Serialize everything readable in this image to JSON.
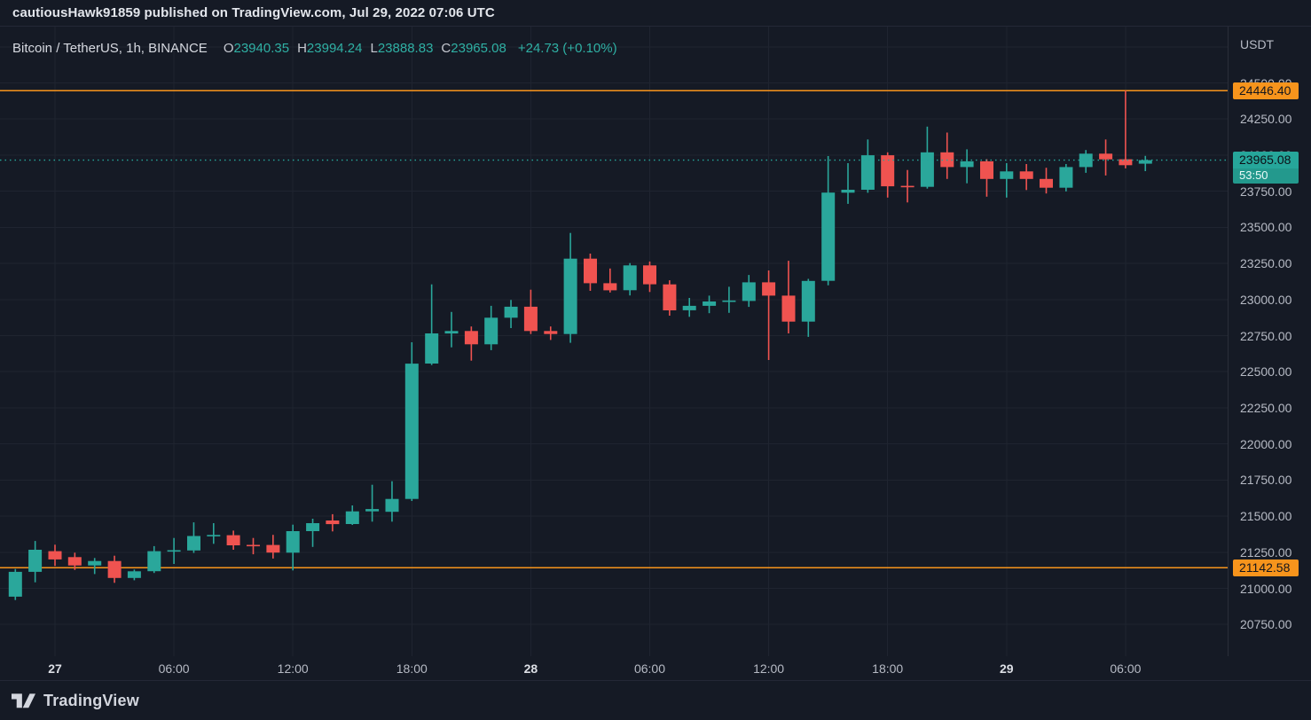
{
  "header": {
    "published_line": "cautiousHawk91859 published on TradingView.com, Jul 29, 2022 07:06 UTC"
  },
  "legend": {
    "symbol": "Bitcoin / TetherUS, 1h, BINANCE",
    "ohlc": [
      {
        "label": "O",
        "value": "23940.35"
      },
      {
        "label": "H",
        "value": "23994.24"
      },
      {
        "label": "L",
        "value": "23888.83"
      },
      {
        "label": "C",
        "value": "23965.08"
      }
    ],
    "change": "+24.73 (+0.10%)"
  },
  "price_axis": {
    "currency_label": "USDT",
    "ticks": [
      24500,
      24250,
      24000,
      23750,
      23500,
      23250,
      23000,
      22750,
      22500,
      22250,
      22000,
      21750,
      21500,
      21250,
      21000,
      20750
    ]
  },
  "price_lines": [
    {
      "value": "24446.40",
      "price": 24446.4
    },
    {
      "value": "21142.58",
      "price": 21142.58
    }
  ],
  "last_price_label": {
    "value": "23965.08",
    "countdown": "53:50",
    "price": 23965.08
  },
  "time_axis": {
    "labels": [
      {
        "index": 2,
        "text": "27",
        "bold": true
      },
      {
        "index": 8,
        "text": "06:00",
        "bold": false
      },
      {
        "index": 14,
        "text": "12:00",
        "bold": false
      },
      {
        "index": 20,
        "text": "18:00",
        "bold": false
      },
      {
        "index": 26,
        "text": "28",
        "bold": true
      },
      {
        "index": 32,
        "text": "06:00",
        "bold": false
      },
      {
        "index": 38,
        "text": "12:00",
        "bold": false
      },
      {
        "index": 44,
        "text": "18:00",
        "bold": false
      },
      {
        "index": 50,
        "text": "29",
        "bold": true
      },
      {
        "index": 56,
        "text": "06:00",
        "bold": false
      }
    ]
  },
  "footer": {
    "brand": "TradingView"
  },
  "colors": {
    "background": "#151a25",
    "grid": "#1f2430",
    "up": "#2aa79b",
    "down": "#ef5350",
    "orange_line": "#f7941c",
    "last_price": "#26a69a",
    "axis_text": "#b6bac4"
  },
  "chart_data": {
    "type": "candlestick",
    "title": "Bitcoin / TetherUS, 1h, BINANCE",
    "symbol": "BTC/USDT",
    "exchange": "BINANCE",
    "interval": "1h",
    "timezone": "UTC",
    "ylabel": "USDT",
    "ylim": [
      20530,
      24890
    ],
    "y_grid_step": 250,
    "grid": true,
    "current_bar_ohlc": {
      "open": 23940.35,
      "high": 23994.24,
      "low": 23888.83,
      "close": 23965.08,
      "change": 24.73,
      "change_pct": 0.1
    },
    "horizontal_price_lines": [
      24446.4,
      21142.58
    ],
    "last_price": 23965.08,
    "times": [
      "07-26 22:00",
      "07-26 23:00",
      "07-27 00:00",
      "07-27 01:00",
      "07-27 02:00",
      "07-27 03:00",
      "07-27 04:00",
      "07-27 05:00",
      "07-27 06:00",
      "07-27 07:00",
      "07-27 08:00",
      "07-27 09:00",
      "07-27 10:00",
      "07-27 11:00",
      "07-27 12:00",
      "07-27 13:00",
      "07-27 14:00",
      "07-27 15:00",
      "07-27 16:00",
      "07-27 17:00",
      "07-27 18:00",
      "07-27 19:00",
      "07-27 20:00",
      "07-27 21:00",
      "07-27 22:00",
      "07-27 23:00",
      "07-28 00:00",
      "07-28 01:00",
      "07-28 02:00",
      "07-28 03:00",
      "07-28 04:00",
      "07-28 05:00",
      "07-28 06:00",
      "07-28 07:00",
      "07-28 08:00",
      "07-28 09:00",
      "07-28 10:00",
      "07-28 11:00",
      "07-28 12:00",
      "07-28 13:00",
      "07-28 14:00",
      "07-28 15:00",
      "07-28 16:00",
      "07-28 17:00",
      "07-28 18:00",
      "07-28 19:00",
      "07-28 20:00",
      "07-28 21:00",
      "07-28 22:00",
      "07-28 23:00",
      "07-29 00:00",
      "07-29 01:00",
      "07-29 02:00",
      "07-29 03:00",
      "07-29 04:00",
      "07-29 05:00",
      "07-29 06:00",
      "07-29 07:00"
    ],
    "candles": [
      [
        20942,
        21134,
        20919,
        21114
      ],
      [
        21114,
        21328,
        21042,
        21267
      ],
      [
        21257,
        21302,
        21155,
        21200
      ],
      [
        21216,
        21247,
        21128,
        21158
      ],
      [
        21158,
        21210,
        21099,
        21189
      ],
      [
        21189,
        21226,
        21038,
        21072
      ],
      [
        21072,
        21130,
        21056,
        21118
      ],
      [
        21118,
        21292,
        21106,
        21257
      ],
      [
        21256,
        21349,
        21169,
        21262
      ],
      [
        21262,
        21457,
        21245,
        21362
      ],
      [
        21362,
        21451,
        21308,
        21368
      ],
      [
        21368,
        21400,
        21267,
        21298
      ],
      [
        21298,
        21349,
        21236,
        21294
      ],
      [
        21300,
        21370,
        21206,
        21247
      ],
      [
        21247,
        21441,
        21124,
        21396
      ],
      [
        21396,
        21482,
        21287,
        21451
      ],
      [
        21470,
        21513,
        21394,
        21445
      ],
      [
        21445,
        21574,
        21439,
        21533
      ],
      [
        21533,
        21717,
        21462,
        21549
      ],
      [
        21530,
        21742,
        21462,
        21619
      ],
      [
        21619,
        22704,
        21605,
        22556
      ],
      [
        22556,
        23105,
        22546,
        22765
      ],
      [
        22765,
        22914,
        22669,
        22782
      ],
      [
        22782,
        22813,
        22577,
        22690
      ],
      [
        22690,
        22956,
        22649,
        22874
      ],
      [
        22874,
        22997,
        22802,
        22950
      ],
      [
        22950,
        23068,
        22761,
        22782
      ],
      [
        22782,
        22813,
        22720,
        22761
      ],
      [
        22761,
        23461,
        22700,
        23283
      ],
      [
        23283,
        23318,
        23060,
        23113
      ],
      [
        23113,
        23215,
        23048,
        23064
      ],
      [
        23064,
        23252,
        23028,
        23236
      ],
      [
        23236,
        23263,
        23052,
        23105
      ],
      [
        23105,
        23133,
        22888,
        22925
      ],
      [
        22925,
        23011,
        22880,
        22956
      ],
      [
        22956,
        23027,
        22905,
        22986
      ],
      [
        22986,
        23088,
        22908,
        22990
      ],
      [
        22990,
        23170,
        22949,
        23119
      ],
      [
        23119,
        23201,
        22581,
        23027
      ],
      [
        23027,
        23268,
        22765,
        22847
      ],
      [
        22847,
        23143,
        22741,
        23129
      ],
      [
        23129,
        23993,
        23098,
        23740
      ],
      [
        23740,
        23944,
        23662,
        23760
      ],
      [
        23760,
        24108,
        23739,
        23999
      ],
      [
        23999,
        24019,
        23706,
        23784
      ],
      [
        23784,
        23897,
        23672,
        23780
      ],
      [
        23780,
        24197,
        23768,
        24019
      ],
      [
        24019,
        24156,
        23835,
        23917
      ],
      [
        23917,
        24040,
        23805,
        23957
      ],
      [
        23957,
        23972,
        23712,
        23835
      ],
      [
        23835,
        23944,
        23706,
        23887
      ],
      [
        23887,
        23938,
        23758,
        23835
      ],
      [
        23835,
        23912,
        23734,
        23774
      ],
      [
        23774,
        23938,
        23748,
        23917
      ],
      [
        23917,
        24035,
        23877,
        24010
      ],
      [
        24010,
        24108,
        23859,
        23971
      ],
      [
        23971,
        24446.4,
        23908,
        23930
      ],
      [
        23940.35,
        23994.24,
        23888.83,
        23965.08
      ]
    ]
  }
}
